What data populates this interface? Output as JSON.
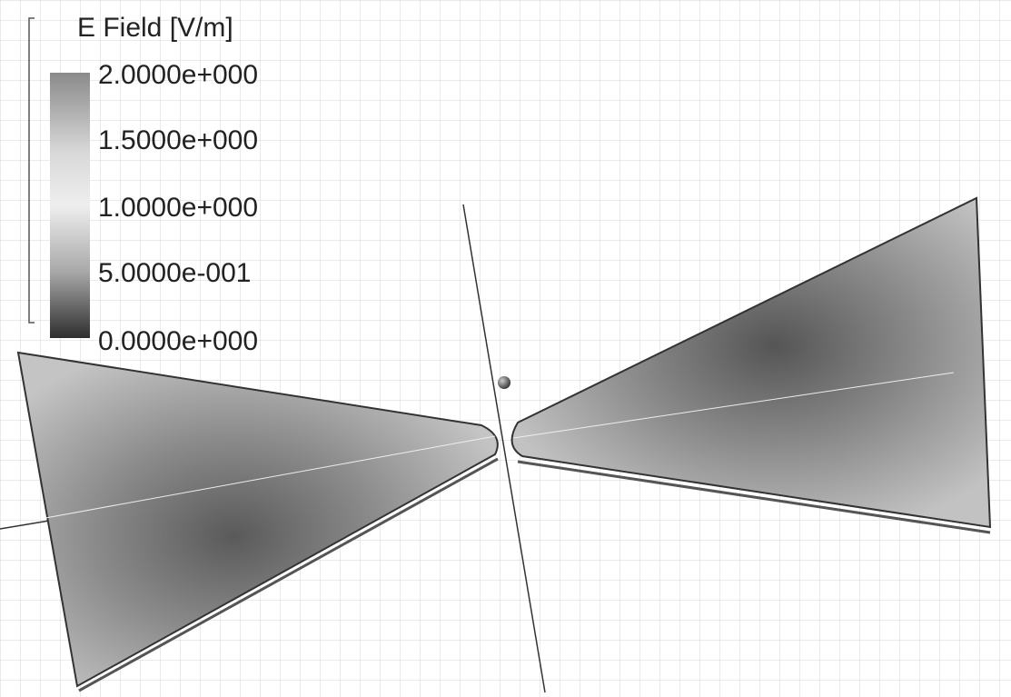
{
  "legend": {
    "title": "E Field [V/m]",
    "labels": [
      "2.0000e+000",
      "1.5000e+000",
      "1.0000e+000",
      "5.0000e-001",
      "0.0000e+000"
    ]
  }
}
